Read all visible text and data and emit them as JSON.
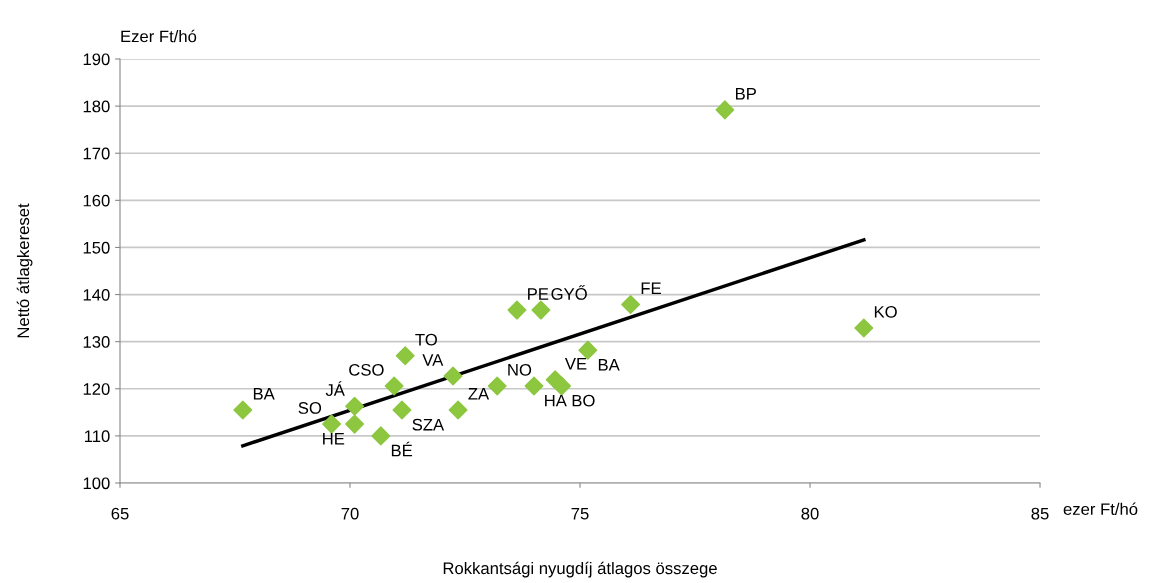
{
  "chart_data": {
    "type": "scatter",
    "xlabel": "Rokkantsági nyugdíj átlagos összege",
    "ylabel": "Nettó átlagkereset",
    "xlim": [
      65,
      85
    ],
    "xticks": [
      65,
      70,
      75,
      80,
      85
    ],
    "ylim": [
      100,
      190
    ],
    "yticks": [
      100,
      110,
      120,
      130,
      140,
      150,
      160,
      170,
      180,
      190
    ],
    "grid": "y",
    "marker": "diamond",
    "legend": false,
    "series": [
      {
        "color": "#8dc63f",
        "x": [
          67.67,
          69.6,
          70.1,
          70.1,
          70.67,
          70.96,
          71.13,
          71.2,
          72.24,
          72.35,
          73.2,
          73.63,
          74.15,
          74.0,
          74.46,
          74.6,
          75.17,
          76.1,
          78.15,
          81.17
        ],
        "values": [
          115.5,
          112.5,
          116.3,
          112.5,
          110,
          120.6,
          115.5,
          127,
          122.7,
          115.5,
          120.6,
          136.7,
          136.7,
          120.6,
          121.9,
          120.6,
          128.2,
          137.9,
          179.2,
          132.9
        ]
      },
      {
        "type": "line",
        "marker": "none",
        "color": "#000000",
        "x": [
          67.67,
          81.17
        ],
        "values": [
          107.9,
          151.6
        ]
      }
    ],
    "annotations": [
      "Ezer Ft/hó",
      "ezer Ft/hó",
      {
        "text": "BA",
        "x": 67.67,
        "y": 115.5
      },
      {
        "text": "SO",
        "x": 69.6,
        "y": 112.5
      },
      {
        "text": "JÁ",
        "x": 70.1,
        "y": 116.3
      },
      {
        "text": "HE",
        "x": 70.1,
        "y": 112.5
      },
      {
        "text": "BÉ",
        "x": 70.67,
        "y": 110
      },
      {
        "text": "CSO",
        "x": 70.96,
        "y": 120.6
      },
      {
        "text": "SZA",
        "x": 71.13,
        "y": 115.5
      },
      {
        "text": "TO",
        "x": 71.2,
        "y": 127
      },
      {
        "text": "VA",
        "x": 72.24,
        "y": 122.7
      },
      {
        "text": "ZA",
        "x": 72.35,
        "y": 115.5
      },
      {
        "text": "NO",
        "x": 73.2,
        "y": 120.6
      },
      {
        "text": "PE",
        "x": 73.63,
        "y": 136.7
      },
      {
        "text": "GYŐ",
        "x": 74.15,
        "y": 136.7
      },
      {
        "text": "HA",
        "x": 74.0,
        "y": 120.6
      },
      {
        "text": "VE",
        "x": 74.46,
        "y": 121.9
      },
      {
        "text": "BO",
        "x": 74.6,
        "y": 120.6
      },
      {
        "text": "BA",
        "x": 75.17,
        "y": 128.2
      },
      {
        "text": "FE",
        "x": 76.1,
        "y": 137.9
      },
      {
        "text": "BP",
        "x": 78.15,
        "y": 179.2
      },
      {
        "text": "KO",
        "x": 81.17,
        "y": 132.9
      }
    ]
  }
}
